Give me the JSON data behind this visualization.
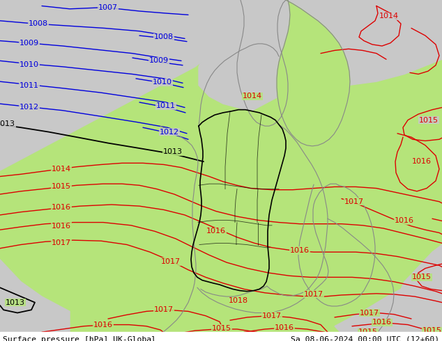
{
  "title_left": "Surface pressure [hPa] UK-Global",
  "title_right": "Sa 08-06-2024 00:00 UTC (12+60)",
  "bg_land": "#b5e47a",
  "bg_sea_gray": "#c8c8c8",
  "bg_white": "#ffffff",
  "blue_iso": "#0000dd",
  "black_iso": "#000000",
  "red_iso": "#dd0000",
  "gray_border": "#888888",
  "fig_width": 6.34,
  "fig_height": 4.9,
  "dpi": 100
}
